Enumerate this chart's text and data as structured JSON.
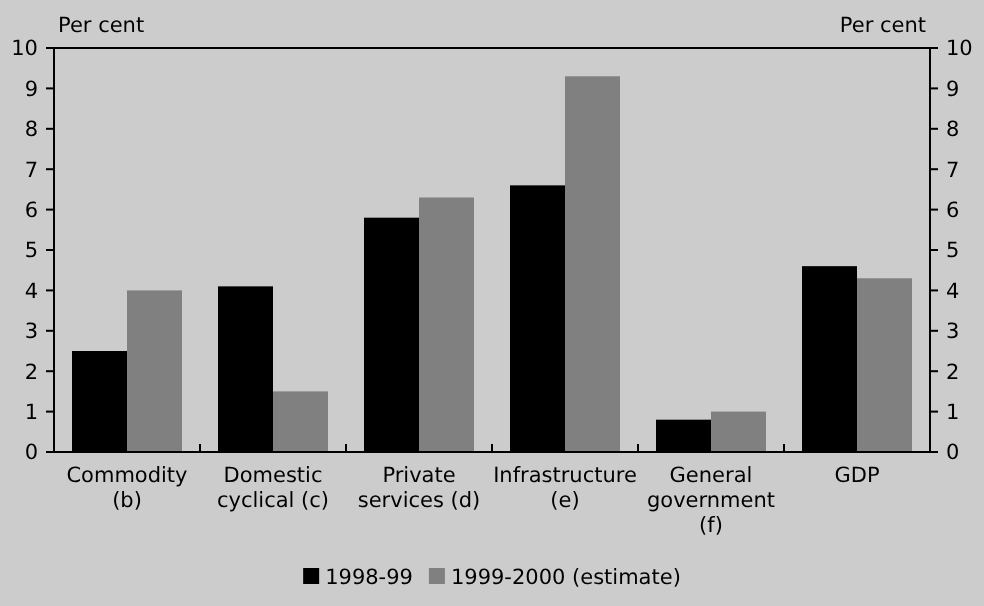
{
  "chart_data": {
    "type": "bar",
    "ylabel": "Per cent",
    "y2label": "Per cent",
    "categories": [
      "Commodity (b)",
      "Domestic cyclical (c)",
      "Private services (d)",
      "Infrastructure (e)",
      "General government (f)",
      "GDP"
    ],
    "series": [
      {
        "name": "1998-99",
        "color": "#000000",
        "values": [
          2.5,
          4.1,
          5.8,
          6.6,
          0.8,
          4.6
        ]
      },
      {
        "name": "1999-2000 (estimate)",
        "color": "#808080",
        "values": [
          4.0,
          1.5,
          6.3,
          9.3,
          1.0,
          4.3
        ]
      }
    ],
    "ylim": [
      0,
      10
    ],
    "yticks": [
      0,
      1,
      2,
      3,
      4,
      5,
      6,
      7,
      8,
      9,
      10
    ],
    "y2lim": [
      0,
      10
    ],
    "y2ticks": [
      0,
      1,
      2,
      3,
      4,
      5,
      6,
      7,
      8,
      9,
      10
    ],
    "grid": false,
    "legend": "bottom"
  }
}
